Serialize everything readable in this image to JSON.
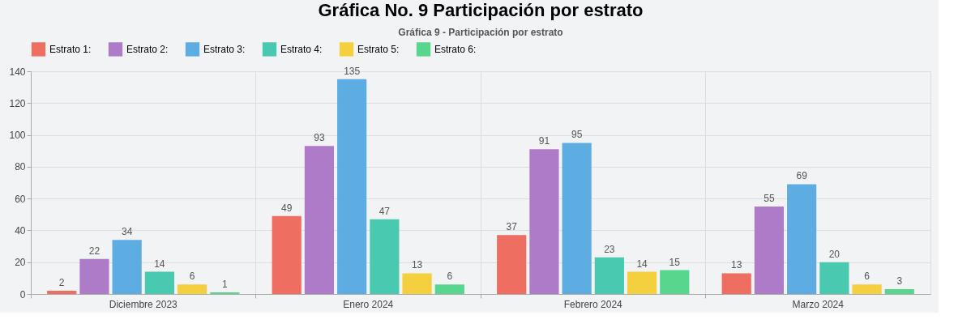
{
  "chart_data": {
    "type": "bar",
    "title": "Gráfica No. 9 Participación por estrato",
    "subtitle": "Gráfica 9 - Participación por estrato",
    "categories": [
      "Diciembre 2023",
      "Enero 2024",
      "Febrero 2024",
      "Marzo 2024"
    ],
    "series": [
      {
        "name": "Estrato 1:",
        "color": "#ee6f61",
        "values": [
          2,
          49,
          37,
          13
        ]
      },
      {
        "name": "Estrato 2:",
        "color": "#ae7bc8",
        "values": [
          22,
          93,
          91,
          55
        ]
      },
      {
        "name": "Estrato 3:",
        "color": "#5dade2",
        "values": [
          34,
          135,
          95,
          69
        ]
      },
      {
        "name": "Estrato 4:",
        "color": "#48c9b0",
        "values": [
          14,
          47,
          23,
          20
        ]
      },
      {
        "name": "Estrato 5:",
        "color": "#f4d03f",
        "values": [
          6,
          13,
          14,
          6
        ]
      },
      {
        "name": "Estrato 6:",
        "color": "#58d68d",
        "values": [
          1,
          6,
          15,
          3
        ]
      }
    ],
    "ylim": [
      0,
      140
    ],
    "yticks": [
      0,
      20,
      40,
      60,
      80,
      100,
      120,
      140
    ],
    "grid": true,
    "legend": "top",
    "data_labels": true
  }
}
